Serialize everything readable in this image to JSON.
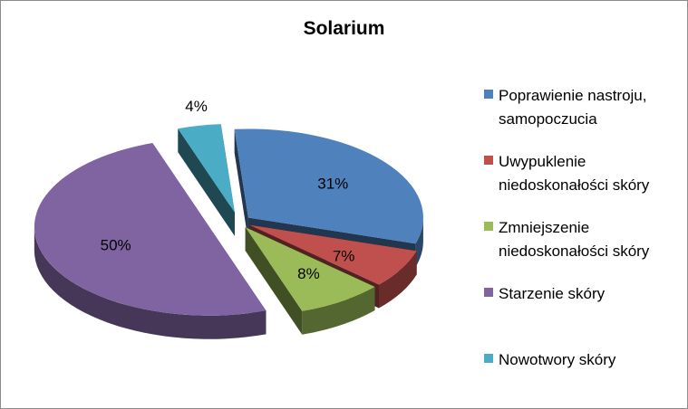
{
  "chart_data": {
    "type": "pie",
    "title": "Solarium",
    "style": "3d-exploded",
    "legend_position": "right",
    "slices": [
      {
        "label": "Poprawienie nastroju, samopoczucia",
        "value": 31,
        "data_label": "31%",
        "color": "#4F81BD"
      },
      {
        "label": "Uwypuklenie niedoskonałości skóry",
        "value": 7,
        "data_label": "7%",
        "color": "#C0504D"
      },
      {
        "label": "Zmniejszenie niedoskonałości skóry",
        "value": 8,
        "data_label": "8%",
        "color": "#9BBB59"
      },
      {
        "label": "Starzenie skóry",
        "value": 50,
        "data_label": "50%",
        "color": "#8064A2"
      },
      {
        "label": "Nowotwory skóry",
        "value": 4,
        "data_label": "4%",
        "color": "#4BACC6"
      }
    ]
  }
}
